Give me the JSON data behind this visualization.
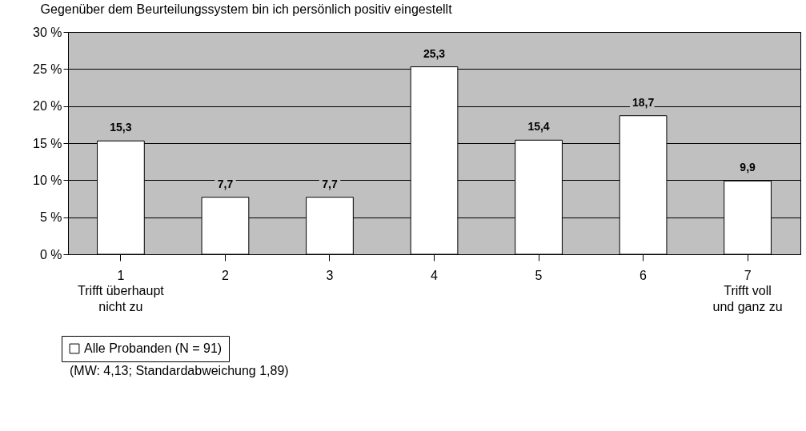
{
  "chart_data": {
    "type": "bar",
    "title": "Gegenüber dem Beurteilungssystem  bin ich persönlich positiv eingestellt",
    "categories": [
      "1",
      "2",
      "3",
      "4",
      "5",
      "6",
      "7"
    ],
    "series": [
      {
        "name": "Alle Probanden (N = 91)",
        "color": "#ffffff",
        "values": [
          15.3,
          7.7,
          7.7,
          25.3,
          15.4,
          18.7,
          9.9
        ],
        "value_labels": [
          "15,3",
          "7,7",
          "7,7",
          "25,3",
          "15,4",
          "18,7",
          "9,9"
        ]
      }
    ],
    "ylim": [
      0,
      30
    ],
    "yticks": [
      {
        "value": 0,
        "label": "0 %"
      },
      {
        "value": 5,
        "label": "5 %"
      },
      {
        "value": 10,
        "label": "10 %"
      },
      {
        "value": 15,
        "label": "15 %"
      },
      {
        "value": 20,
        "label": "20 %"
      },
      {
        "value": 25,
        "label": "25 %"
      },
      {
        "value": 30,
        "label": "30 %"
      }
    ],
    "grid": "y",
    "legend": "bottom left",
    "annotations": [
      "Trifft überhaupt\nnicht zu",
      "Trifft voll\nund ganz zu",
      "(MW: 4,13;  Standardabweichung 1,89)"
    ]
  }
}
